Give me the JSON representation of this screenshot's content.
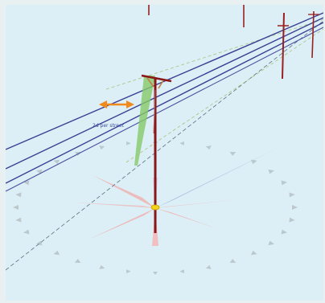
{
  "scene": {
    "annotation_label": "2d per street",
    "background_color": "#dceff6",
    "pole_color": "#8a1717",
    "wire_color": "#3a3f93",
    "guy_wire_color": "#7bc46a",
    "compass_icon": "compass-rose-icon"
  }
}
